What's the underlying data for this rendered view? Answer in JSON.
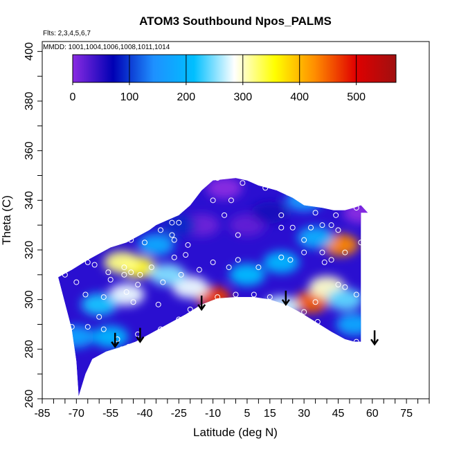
{
  "chart_data": {
    "type": "heatmap",
    "title": "ATOM3 Southbound Npos_PALMS",
    "flights_note": "Flts: 2,3,4,5,6,7",
    "dates_note": "MMDD: 1001,1004,1006,1008,1011,1014",
    "xlabel": "Latitude (deg N)",
    "ylabel": "Theta (C)",
    "xlim": [
      -85,
      85
    ],
    "ylim": [
      260,
      404
    ],
    "x_tick_labels": [
      "-85",
      "-70",
      "-55",
      "-40",
      "-25",
      "-10",
      "5",
      "15",
      "30",
      "45",
      "60",
      "75"
    ],
    "y_tick_labels": [
      "260",
      "280",
      "300",
      "320",
      "340",
      "360",
      "380",
      "400"
    ],
    "colorbar": {
      "range": [
        0,
        570
      ],
      "tick_labels": [
        "0",
        "100",
        "200",
        "300",
        "400",
        "500"
      ],
      "colors": [
        "#8a2be2",
        "#0000b4",
        "#1e90ff",
        "#00bfff",
        "#ffffff",
        "#ffff00",
        "#ff8c00",
        "#e00000",
        "#a01010"
      ]
    },
    "field_outline": {
      "upper_theta": [
        [
          -78,
          309
        ],
        [
          -72,
          312
        ],
        [
          -65,
          316
        ],
        [
          -55,
          321
        ],
        [
          -48,
          323
        ],
        [
          -42,
          326
        ],
        [
          -38,
          328
        ],
        [
          -35,
          330
        ],
        [
          -30,
          332
        ],
        [
          -25,
          334
        ],
        [
          -20,
          338
        ],
        [
          -15,
          344
        ],
        [
          -10,
          348
        ],
        [
          0,
          349
        ],
        [
          5,
          348
        ],
        [
          10,
          346
        ],
        [
          18,
          344
        ],
        [
          25,
          341
        ],
        [
          30,
          338
        ],
        [
          38,
          337
        ],
        [
          43,
          336
        ],
        [
          48,
          336
        ],
        [
          52,
          337
        ],
        [
          55,
          338
        ],
        [
          58,
          335
        ]
      ],
      "lower_theta": [
        [
          -78,
          309
        ],
        [
          -74,
          295
        ],
        [
          -72,
          288
        ],
        [
          -70,
          275
        ],
        [
          -69,
          261
        ],
        [
          -68,
          264
        ],
        [
          -66,
          270
        ],
        [
          -63,
          276
        ],
        [
          -57,
          279
        ],
        [
          -50,
          281
        ],
        [
          -44,
          283
        ],
        [
          -38,
          286
        ],
        [
          -30,
          290
        ],
        [
          -22,
          294
        ],
        [
          -15,
          298
        ],
        [
          -8,
          300.5
        ],
        [
          0,
          301
        ],
        [
          8,
          301
        ],
        [
          15,
          300
        ],
        [
          22,
          298
        ],
        [
          28,
          295
        ],
        [
          35,
          291
        ],
        [
          42,
          287
        ],
        [
          48,
          284
        ],
        [
          52,
          283
        ],
        [
          55,
          283
        ],
        [
          55,
          335
        ]
      ]
    },
    "cells": [
      {
        "lat": -10,
        "theta": 301,
        "value": 470
      },
      {
        "lat": 33,
        "theta": 299,
        "value": 450
      },
      {
        "lat": 46,
        "theta": 322,
        "value": 430
      },
      {
        "lat": -43,
        "theta": 313,
        "value": 360
      },
      {
        "lat": -50,
        "theta": 315,
        "value": 320
      },
      {
        "lat": 40,
        "theta": 305,
        "value": 300
      },
      {
        "lat": -20,
        "theta": 305,
        "value": 280
      },
      {
        "lat": 20,
        "theta": 297,
        "value": 270
      },
      {
        "lat": -48,
        "theta": 302,
        "value": 280
      },
      {
        "lat": 48,
        "theta": 300,
        "value": 240
      },
      {
        "lat": -30,
        "theta": 310,
        "value": 250
      },
      {
        "lat": -60,
        "theta": 298,
        "value": 220
      },
      {
        "lat": 5,
        "theta": 310,
        "value": 210
      },
      {
        "lat": 20,
        "theta": 315,
        "value": 200
      },
      {
        "lat": 35,
        "theta": 325,
        "value": 190
      },
      {
        "lat": -35,
        "theta": 322,
        "value": 180
      },
      {
        "lat": 30,
        "theta": 340,
        "value": 160
      },
      {
        "lat": 52,
        "theta": 290,
        "value": 180
      },
      {
        "lat": -70,
        "theta": 285,
        "value": 170
      },
      {
        "lat": -55,
        "theta": 285,
        "value": 200
      },
      {
        "lat": -5,
        "theta": 345,
        "value": 0
      },
      {
        "lat": -15,
        "theta": 330,
        "value": 15
      },
      {
        "lat": 5,
        "theta": 330,
        "value": 20
      },
      {
        "lat": 55,
        "theta": 335,
        "value": 0
      },
      {
        "lat": -25,
        "theta": 330,
        "value": 90
      },
      {
        "lat": 15,
        "theta": 335,
        "value": 60
      }
    ],
    "observations": [
      [
        -20,
        349
      ],
      [
        -8,
        349
      ],
      [
        3,
        347
      ],
      [
        13,
        345
      ],
      [
        -22,
        341
      ],
      [
        -10,
        340
      ],
      [
        -2,
        340
      ],
      [
        23,
        343
      ],
      [
        32,
        339
      ],
      [
        20,
        334
      ],
      [
        35,
        335
      ],
      [
        44,
        334
      ],
      [
        53,
        337
      ],
      [
        -5,
        334
      ],
      [
        -40,
        331
      ],
      [
        -28,
        331
      ],
      [
        -25,
        331
      ],
      [
        -33,
        328
      ],
      [
        -28,
        326
      ],
      [
        -21,
        322
      ],
      [
        -27,
        324
      ],
      [
        -50,
        326
      ],
      [
        -52,
        325
      ],
      [
        -46,
        324
      ],
      [
        -40,
        323
      ],
      [
        20,
        329
      ],
      [
        25,
        329
      ],
      [
        33,
        329
      ],
      [
        30,
        324
      ],
      [
        38,
        330
      ],
      [
        42,
        330
      ],
      [
        45,
        328
      ],
      [
        55,
        323
      ],
      [
        48,
        319
      ],
      [
        1,
        326
      ],
      [
        -65,
        315
      ],
      [
        -62,
        314
      ],
      [
        -56,
        311
      ],
      [
        -49,
        313
      ],
      [
        -46,
        311
      ],
      [
        -42,
        310
      ],
      [
        -37,
        313
      ],
      [
        -27,
        317
      ],
      [
        -22,
        318
      ],
      [
        -16,
        312
      ],
      [
        -10,
        315
      ],
      [
        -3,
        313
      ],
      [
        1,
        316
      ],
      [
        10,
        313
      ],
      [
        20,
        317
      ],
      [
        24,
        316
      ],
      [
        30,
        319
      ],
      [
        38,
        319
      ],
      [
        42,
        316
      ],
      [
        39,
        315
      ],
      [
        -75,
        310
      ],
      [
        -70,
        307
      ],
      [
        -81,
        307
      ],
      [
        -55,
        308
      ],
      [
        -49,
        310
      ],
      [
        -43,
        306
      ],
      [
        -32,
        307
      ],
      [
        -24,
        310
      ],
      [
        0,
        302
      ],
      [
        -8,
        301
      ],
      [
        8,
        302
      ],
      [
        15,
        301
      ],
      [
        -66,
        302
      ],
      [
        -58,
        301
      ],
      [
        -48,
        303
      ],
      [
        -45,
        299
      ],
      [
        -34,
        298
      ],
      [
        35,
        299
      ],
      [
        30,
        295
      ],
      [
        36,
        291
      ],
      [
        48,
        305
      ],
      [
        53,
        302
      ],
      [
        57,
        301
      ],
      [
        45,
        306
      ],
      [
        -60,
        293
      ],
      [
        -65,
        289
      ],
      [
        -72,
        289
      ],
      [
        -58,
        288
      ],
      [
        -43,
        286
      ],
      [
        -33,
        288
      ],
      [
        -25,
        292
      ],
      [
        -20,
        296
      ],
      [
        -52,
        284
      ],
      [
        -47,
        281
      ],
      [
        -58,
        277
      ],
      [
        -50,
        280
      ],
      [
        47,
        283
      ],
      [
        53,
        283
      ]
    ],
    "arrows": [
      [
        -53,
        281
      ],
      [
        -42,
        283
      ],
      [
        -15,
        296
      ],
      [
        22,
        298
      ],
      [
        61,
        282
      ]
    ]
  }
}
